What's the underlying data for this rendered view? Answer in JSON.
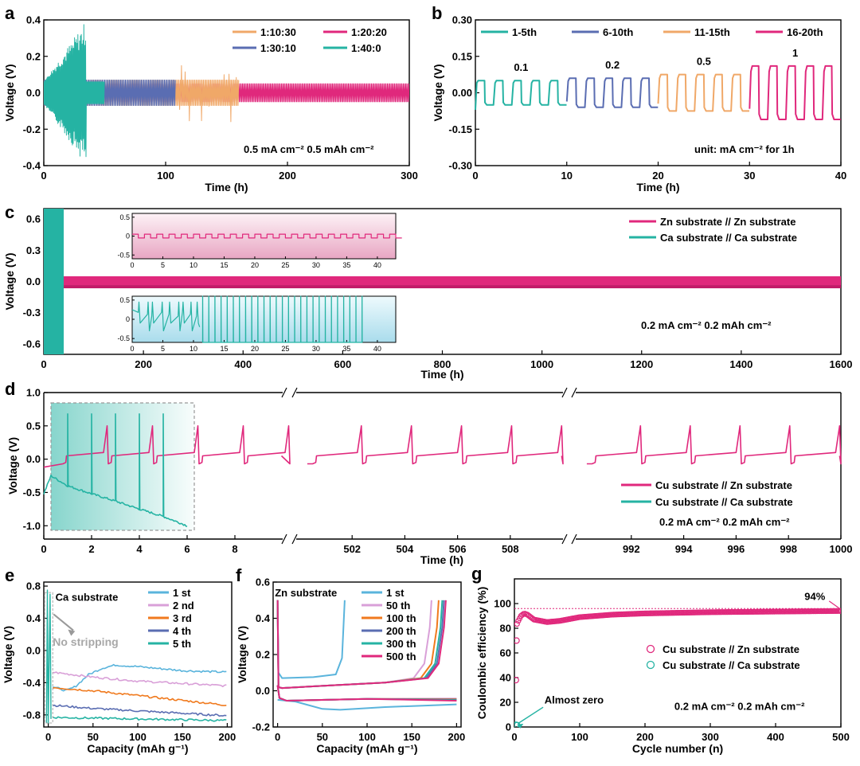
{
  "chart_data": [
    {
      "panel": "a",
      "type": "line",
      "xlabel": "Time (h)",
      "ylabel": "Voltage (V)",
      "xlim": [
        0,
        300
      ],
      "ylim": [
        -0.4,
        0.4
      ],
      "xticks": [
        0,
        100,
        200,
        300
      ],
      "yticks": [
        -0.4,
        -0.2,
        0.0,
        0.2,
        0.4
      ],
      "legend_position": "top-right",
      "annotation": "0.5 mA cm⁻² 0.5 mAh cm⁻²",
      "series": [
        {
          "name": "1:10:30",
          "color": "#f0a868",
          "end_time": 160,
          "amplitude": 0.07,
          "short_circuit_time": 110
        },
        {
          "name": "1:20:20",
          "color": "#e0287c",
          "end_time": 300,
          "amplitude": 0.05
        },
        {
          "name": "1:30:10",
          "color": "#5a6db2",
          "end_time": 108,
          "amplitude": 0.07
        },
        {
          "name": "1:40:0",
          "color": "#25b3a3",
          "end_time": 50,
          "amplitude": 0.4
        }
      ]
    },
    {
      "panel": "b",
      "type": "line",
      "xlabel": "Time (h)",
      "ylabel": "Voltage (V)",
      "xlim": [
        0,
        40
      ],
      "ylim": [
        -0.3,
        0.3
      ],
      "xticks": [
        0,
        10,
        20,
        30,
        40
      ],
      "yticks": [
        -0.3,
        -0.15,
        0.0,
        0.15,
        0.3
      ],
      "legend_position": "top",
      "annotation": "unit: mA cm⁻² for 1h",
      "series": [
        {
          "name": "1-5th",
          "color": "#25b3a3",
          "x_range": [
            0,
            10
          ],
          "current": "0.1",
          "amplitude": 0.05
        },
        {
          "name": "6-10th",
          "color": "#5a6db2",
          "x_range": [
            10,
            20
          ],
          "current": "0.2",
          "amplitude": 0.06
        },
        {
          "name": "11-15th",
          "color": "#f0a868",
          "x_range": [
            20,
            30
          ],
          "current": "0.5",
          "amplitude": 0.075
        },
        {
          "name": "16-20th",
          "color": "#e0287c",
          "x_range": [
            30,
            40
          ],
          "current": "1",
          "amplitude": 0.11
        }
      ]
    },
    {
      "panel": "c",
      "type": "line",
      "xlabel": "Time (h)",
      "ylabel": "Voltage (V)",
      "xlim": [
        0,
        1600
      ],
      "ylim": [
        -0.7,
        0.7
      ],
      "xticks": [
        200,
        400,
        600,
        800,
        1000,
        1200,
        1400,
        1600
      ],
      "yticks": [
        -0.6,
        -0.3,
        0.0,
        0.3,
        0.6
      ],
      "legend_position": "top-right",
      "annotation": "0.2 mA cm⁻² 0.2 mAh cm⁻²",
      "series": [
        {
          "name": "Zn substrate // Zn substrate",
          "color": "#e0287c",
          "end_time": 1600,
          "amplitude": 0.05
        },
        {
          "name": "Ca substrate // Ca substrate",
          "color": "#25b3a3",
          "end_time": 40,
          "amplitude": 0.7
        }
      ],
      "insets": [
        {
          "series": "Zn substrate // Zn substrate",
          "xlim": [
            0,
            43
          ],
          "ylim": [
            -0.6,
            0.6
          ],
          "xticks": [
            0,
            5,
            10,
            15,
            20,
            25,
            30,
            35,
            40
          ],
          "yticks": [
            -0.5,
            0.0,
            0.5
          ]
        },
        {
          "series": "Ca substrate // Ca substrate",
          "xlim": [
            0,
            43
          ],
          "ylim": [
            -0.6,
            0.6
          ],
          "xticks": [
            0,
            5,
            10,
            15,
            20,
            25,
            30,
            35,
            40
          ],
          "yticks": [
            -0.5,
            0.0,
            0.5
          ]
        }
      ]
    },
    {
      "panel": "d",
      "type": "line",
      "xlabel": "Time (h)",
      "ylabel": "Voltage (V)",
      "ylim": [
        -1.2,
        1.0
      ],
      "yticks": [
        -1.0,
        -0.5,
        0.0,
        0.5,
        1.0
      ],
      "broken_x_segments": [
        {
          "xlim": [
            0,
            10
          ],
          "xticks": [
            0,
            2,
            4,
            6,
            8
          ]
        },
        {
          "xlim": [
            500,
            510
          ],
          "xticks": [
            502,
            504,
            506,
            508
          ]
        },
        {
          "xlim": [
            990,
            1000
          ],
          "xticks": [
            992,
            994,
            996,
            998,
            1000
          ]
        }
      ],
      "legend_position": "right",
      "annotation": "0.2 mA cm⁻² 0.2 mAh cm⁻²",
      "series": [
        {
          "name": "Cu substrate // Zn substrate",
          "color": "#e0287c",
          "plateau": -0.07,
          "spike_peak": 0.5
        },
        {
          "name": "Cu substrate // Ca substrate",
          "color": "#25b3a3",
          "x": [
            0,
            0.3,
            1,
            2,
            3,
            4,
            5,
            6
          ],
          "y": [
            -0.52,
            -0.25,
            -0.4,
            -0.52,
            -0.63,
            -0.75,
            -0.86,
            -1.0
          ],
          "spike_peak": 0.68,
          "spikes_at": [
            1,
            2,
            3,
            4,
            5
          ]
        }
      ]
    },
    {
      "panel": "e",
      "type": "line",
      "title": "Ca substrate",
      "xlabel": "Capacity (mAh g⁻¹)",
      "ylabel": "Voltage (V)",
      "xlim": [
        -5,
        205
      ],
      "ylim": [
        -0.95,
        0.85
      ],
      "xticks": [
        0,
        50,
        100,
        150,
        200
      ],
      "yticks": [
        -0.8,
        -0.4,
        0.0,
        0.4,
        0.8
      ],
      "annotation": "No stripping",
      "legend_position": "top-right",
      "series": [
        {
          "name": "1 st",
          "color": "#5ab4dc",
          "x": [
            5,
            20,
            30,
            45,
            60,
            75,
            100,
            150,
            200
          ],
          "y": [
            -0.45,
            -0.5,
            -0.45,
            -0.3,
            -0.22,
            -0.18,
            -0.2,
            -0.25,
            -0.27
          ]
        },
        {
          "name": "2 nd",
          "color": "#d9a0d8",
          "x": [
            5,
            50,
            100,
            150,
            200
          ],
          "y": [
            -0.27,
            -0.33,
            -0.38,
            -0.41,
            -0.44
          ]
        },
        {
          "name": "3 rd",
          "color": "#f07a1e",
          "x": [
            5,
            50,
            100,
            150,
            200
          ],
          "y": [
            -0.46,
            -0.5,
            -0.56,
            -0.62,
            -0.68
          ]
        },
        {
          "name": "4 th",
          "color": "#5a6db2",
          "x": [
            5,
            50,
            100,
            150,
            200
          ],
          "y": [
            -0.68,
            -0.72,
            -0.75,
            -0.78,
            -0.81
          ]
        },
        {
          "name": "5 th",
          "color": "#25b3a3",
          "x": [
            5,
            50,
            100,
            150,
            200
          ],
          "y": [
            -0.83,
            -0.84,
            -0.85,
            -0.86,
            -0.87
          ]
        }
      ]
    },
    {
      "panel": "f",
      "type": "line",
      "title": "Zn substrate",
      "xlabel": "Capacity (mAh g⁻¹)",
      "ylabel": "Voltage (V)",
      "xlim": [
        -5,
        205
      ],
      "ylim": [
        -0.2,
        0.6
      ],
      "xticks": [
        0,
        50,
        100,
        150,
        200
      ],
      "yticks": [
        -0.2,
        0.0,
        0.2,
        0.4,
        0.6
      ],
      "legend_position": "top-right",
      "series": [
        {
          "name": "1 st",
          "color": "#5ab4dc",
          "capacity": 75
        },
        {
          "name": "50 th",
          "color": "#d9a0d8",
          "capacity": 172
        },
        {
          "name": "100 th",
          "color": "#f07a1e",
          "capacity": 180
        },
        {
          "name": "200 th",
          "color": "#5a6db2",
          "capacity": 186
        },
        {
          "name": "300 th",
          "color": "#25b3a3",
          "capacity": 184
        },
        {
          "name": "500 th",
          "color": "#e0287c",
          "capacity": 188
        }
      ]
    },
    {
      "panel": "g",
      "type": "scatter",
      "xlabel": "Cycle number (n)",
      "ylabel": "Coulombic efficiency (%)",
      "xlim": [
        0,
        500
      ],
      "ylim": [
        0,
        120
      ],
      "xticks": [
        0,
        100,
        200,
        300,
        400,
        500
      ],
      "yticks": [
        0,
        20,
        40,
        60,
        80,
        100
      ],
      "legend_position": "right",
      "annotations": [
        "94%",
        "Almost zero",
        "0.2 mA cm⁻² 0.2 mAh cm⁻²"
      ],
      "series": [
        {
          "name": "Cu substrate // Zn substrate",
          "color": "#e0287c",
          "x": [
            1,
            2,
            3,
            5,
            10,
            15,
            20,
            30,
            50,
            70,
            100,
            150,
            200,
            300,
            400,
            500
          ],
          "y": [
            38,
            70,
            82,
            85,
            90,
            92,
            91,
            87,
            85,
            86,
            89,
            91,
            92,
            93,
            93.5,
            94
          ]
        },
        {
          "name": "Cu substrate // Ca substrate",
          "color": "#25b3a3",
          "x": [
            1,
            2,
            3
          ],
          "y": [
            0.5,
            0.3,
            0.2
          ]
        }
      ]
    }
  ]
}
